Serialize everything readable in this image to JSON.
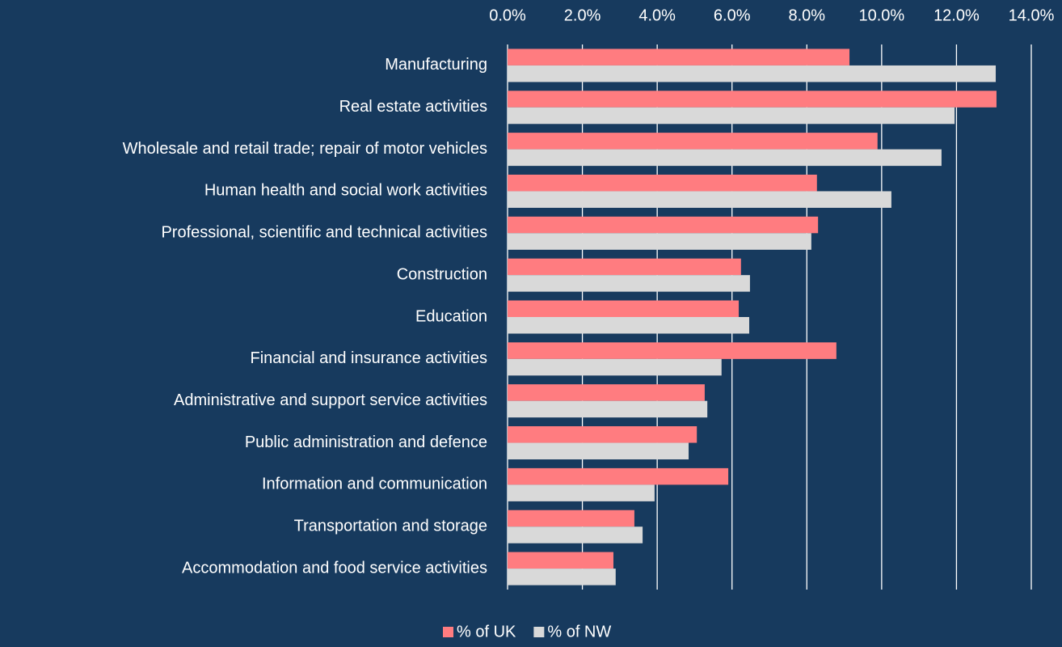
{
  "chart_data": {
    "type": "hbar",
    "categories": [
      "Manufacturing",
      "Real estate activities",
      "Wholesale and retail trade; repair of motor vehicles",
      "Human health and social work activities",
      "Professional, scientific and technical activities",
      "Construction",
      "Education",
      "Financial and insurance activities",
      "Administrative and support service activities",
      "Public administration and defence",
      "Information and communication",
      "Transportation and storage",
      "Accommodation and food service activities"
    ],
    "series": [
      {
        "name": "% of UK",
        "color": "#ff7c80",
        "values": [
          9.14,
          13.07,
          9.89,
          8.27,
          8.3,
          6.24,
          6.18,
          8.79,
          5.27,
          5.06,
          5.9,
          3.39,
          2.83
        ]
      },
      {
        "name": "% of NW",
        "color": "#d9d9d9",
        "values": [
          13.05,
          11.95,
          11.6,
          10.26,
          8.12,
          6.48,
          6.46,
          5.72,
          5.34,
          4.84,
          3.93,
          3.61,
          2.89
        ]
      }
    ],
    "xlim": [
      0,
      14
    ],
    "xticks": [
      {
        "value": 0,
        "label": "0.0%"
      },
      {
        "value": 2,
        "label": "2.0%"
      },
      {
        "value": 4,
        "label": "4.0%"
      },
      {
        "value": 6,
        "label": "6.0%"
      },
      {
        "value": 8,
        "label": "8.0%"
      },
      {
        "value": 10,
        "label": "10.0%"
      },
      {
        "value": 12,
        "label": "12.0%"
      },
      {
        "value": 14,
        "label": "14.0%"
      }
    ],
    "grid": true,
    "legend": "bottom"
  }
}
